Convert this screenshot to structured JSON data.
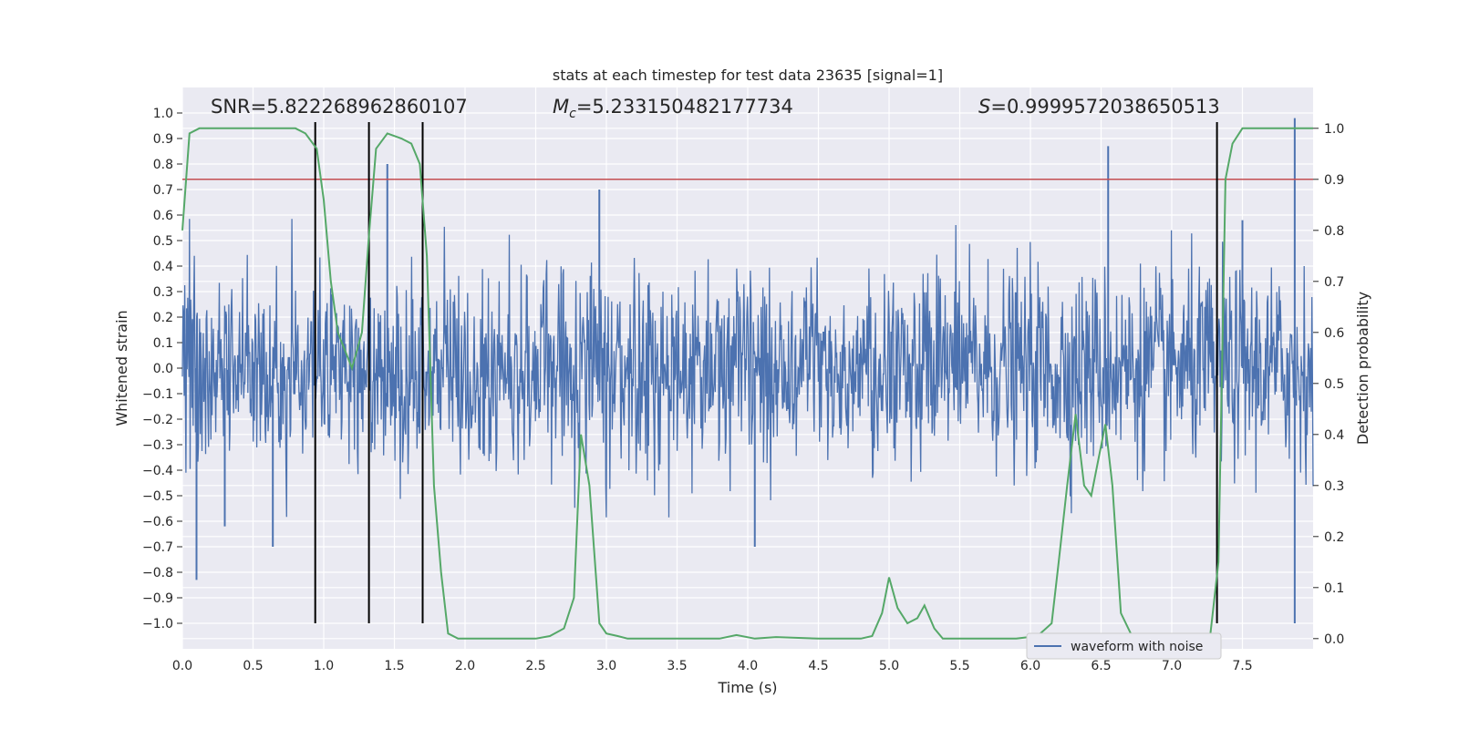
{
  "chart_data": {
    "type": "line",
    "title": "stats at each timestep for test data 23635 [signal=1]",
    "xlabel": "Time (s)",
    "ylabel": "Whitened strain",
    "y2label": "Detection probability",
    "xlim": [
      0.0,
      8.0
    ],
    "ylim": [
      -1.1,
      1.1
    ],
    "y2lim": [
      -0.02,
      1.08
    ],
    "xticks": [
      "0.0",
      "0.5",
      "1.0",
      "1.5",
      "2.0",
      "2.5",
      "3.0",
      "3.5",
      "4.0",
      "4.5",
      "5.0",
      "5.5",
      "6.0",
      "6.5",
      "7.0",
      "7.5"
    ],
    "yticks": [
      "1.0",
      "0.9",
      "0.8",
      "0.7",
      "0.6",
      "0.5",
      "0.4",
      "0.3",
      "0.2",
      "0.1",
      "0.0",
      "-0.1",
      "-0.2",
      "-0.3",
      "-0.4",
      "-0.5",
      "-0.6",
      "-0.7",
      "-0.8",
      "-0.9",
      "-1.0"
    ],
    "y2ticks": [
      "1.0",
      "0.9",
      "0.8",
      "0.7",
      "0.6",
      "0.5",
      "0.4",
      "0.3",
      "0.2",
      "0.1",
      "0.0"
    ],
    "annotations": {
      "snr": "SNR=5.822268962860107",
      "mc_symbol": "M",
      "mc_sub": "c",
      "mc_value": "=5.233150482177734",
      "s_symbol": "S",
      "s_value": "=0.9999572038650513"
    },
    "threshold": 0.9,
    "detection_markers": [
      0.94,
      1.32,
      1.7,
      7.32
    ],
    "legend": [
      "waveform with noise"
    ],
    "series": [
      {
        "name": "waveform with noise",
        "axis": "left",
        "color": "#4c72b0",
        "noise_envelope": {
          "typical_max": 0.45,
          "typical_min": -0.45
        },
        "spikes": [
          {
            "x": 0.1,
            "y": -0.83
          },
          {
            "x": 0.3,
            "y": -0.62
          },
          {
            "x": 0.64,
            "y": -0.7
          },
          {
            "x": 1.45,
            "y": 0.8
          },
          {
            "x": 2.95,
            "y": 0.7
          },
          {
            "x": 4.05,
            "y": -0.7
          },
          {
            "x": 6.55,
            "y": 0.87
          },
          {
            "x": 7.5,
            "y": 0.58
          },
          {
            "x": 7.87,
            "y": 0.98
          },
          {
            "x": 7.87,
            "y": -1.0
          }
        ]
      },
      {
        "name": "Detection probability",
        "axis": "right",
        "color": "#55a868",
        "x": [
          0.0,
          0.05,
          0.12,
          0.3,
          0.6,
          0.8,
          0.87,
          0.95,
          1.0,
          1.05,
          1.1,
          1.2,
          1.27,
          1.32,
          1.37,
          1.45,
          1.55,
          1.62,
          1.68,
          1.73,
          1.78,
          1.83,
          1.88,
          1.95,
          2.2,
          2.5,
          2.6,
          2.7,
          2.77,
          2.82,
          2.88,
          2.95,
          3.0,
          3.08,
          3.15,
          3.3,
          3.8,
          3.92,
          4.05,
          4.2,
          4.5,
          4.8,
          4.88,
          4.95,
          5.0,
          5.06,
          5.13,
          5.2,
          5.25,
          5.32,
          5.38,
          5.5,
          5.9,
          6.05,
          6.15,
          6.2,
          6.26,
          6.32,
          6.38,
          6.43,
          6.48,
          6.53,
          6.58,
          6.64,
          6.71,
          6.85,
          7.0,
          7.27,
          7.33,
          7.38,
          7.43,
          7.5,
          7.7,
          8.0
        ],
        "values": [
          0.8,
          0.99,
          1.0,
          1.0,
          1.0,
          1.0,
          0.99,
          0.96,
          0.86,
          0.7,
          0.6,
          0.53,
          0.6,
          0.79,
          0.96,
          0.99,
          0.98,
          0.97,
          0.93,
          0.75,
          0.3,
          0.13,
          0.01,
          0.0,
          0.0,
          0.0,
          0.005,
          0.02,
          0.08,
          0.4,
          0.3,
          0.03,
          0.01,
          0.005,
          0.0,
          0.0,
          0.0,
          0.007,
          0.0,
          0.003,
          0.0,
          0.0,
          0.005,
          0.05,
          0.12,
          0.06,
          0.03,
          0.04,
          0.065,
          0.02,
          0.0,
          0.0,
          0.0,
          0.005,
          0.03,
          0.15,
          0.3,
          0.44,
          0.3,
          0.28,
          0.35,
          0.42,
          0.3,
          0.05,
          0.01,
          0.0,
          0.0,
          0.0,
          0.15,
          0.9,
          0.97,
          1.0,
          1.0,
          1.0
        ]
      },
      {
        "name": "threshold",
        "axis": "right",
        "color": "#c44e52",
        "x": [
          0.0,
          8.0
        ],
        "values": [
          0.9,
          0.9
        ]
      }
    ]
  }
}
